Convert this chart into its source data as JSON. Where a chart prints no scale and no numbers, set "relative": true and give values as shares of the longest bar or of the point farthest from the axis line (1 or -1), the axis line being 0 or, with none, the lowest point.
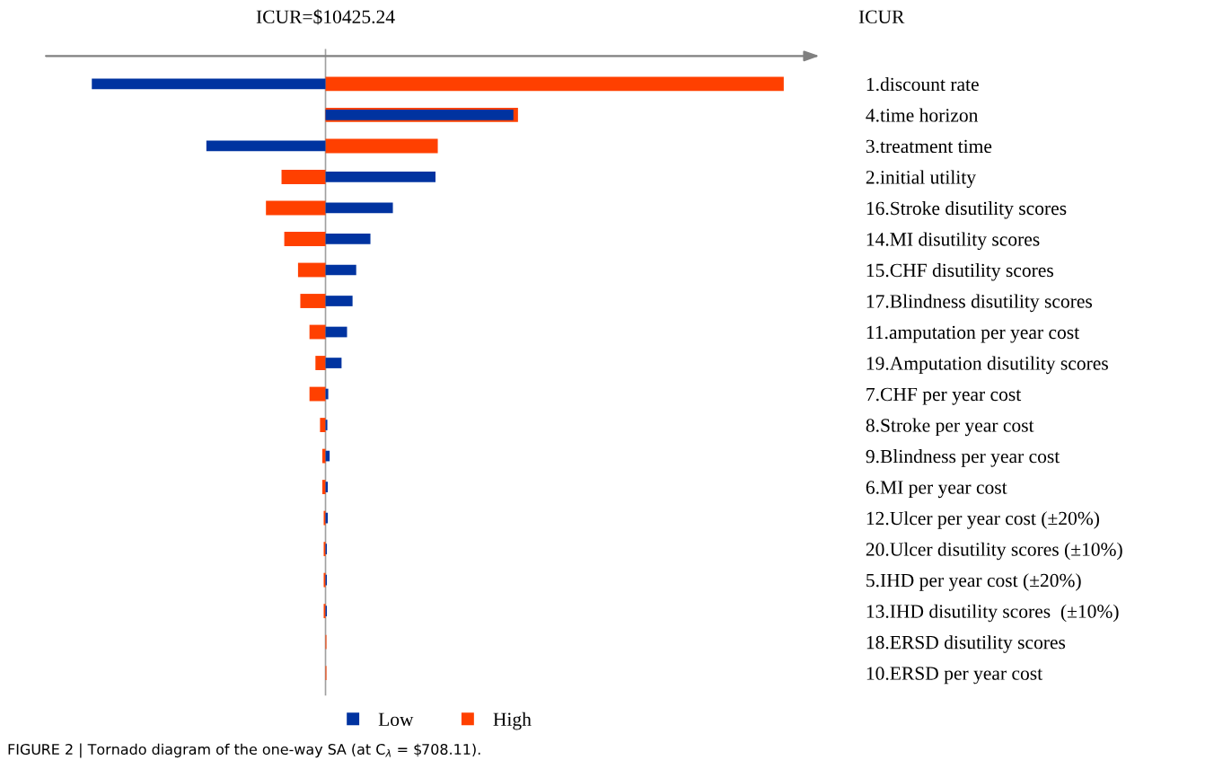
{
  "chart_data": {
    "type": "bar",
    "orientation": "horizontal",
    "relative": true,
    "categories": [
      "1.discount rate",
      "4.time horizon",
      "3.treatment time",
      "2.initial utility",
      "16.Stroke disutility scores",
      "14.MI disutility scores",
      "15.CHF disutility scores",
      "17.Blindness disutility scores",
      "11.amputation per year cost",
      "19.Amputation disutility scores",
      "7.CHF per year cost",
      "8.Stroke per year cost",
      "9.Blindness per year cost",
      "6.MI per year cost",
      "12.Ulcer per year cost (±20%)",
      "20.Ulcer disutility scores (±10%)",
      "5.IHD per year cost (±20%)",
      "13.IHD disutility scores  (±10%)",
      "18.ERSD disutility scores",
      "10.ERSD per year cost"
    ],
    "series": [
      {
        "name": "Low",
        "color": "#0033a0",
        "values": [
          -0.51,
          0.41,
          -0.26,
          0.24,
          0.147,
          0.098,
          0.067,
          0.059,
          0.047,
          0.035,
          0.006,
          0.004,
          0.009,
          0.005,
          0.005,
          0.003,
          0.003,
          0.003,
          null,
          null
        ]
      },
      {
        "name": "High",
        "color": "#ff4000",
        "values": [
          1.0,
          0.42,
          0.245,
          -0.096,
          -0.13,
          -0.09,
          -0.06,
          -0.055,
          -0.035,
          -0.022,
          -0.035,
          -0.012,
          -0.007,
          -0.007,
          -0.004,
          -0.004,
          -0.004,
          -0.004,
          0.002,
          0.002
        ]
      }
    ],
    "legend": "bottom",
    "annotations": [
      "ICUR=$10425.24",
      "ICUR",
      "FIGURE 2 | Tornado diagram of the one-way SA (at C$_{λ}$ = $708.11)."
    ]
  }
}
